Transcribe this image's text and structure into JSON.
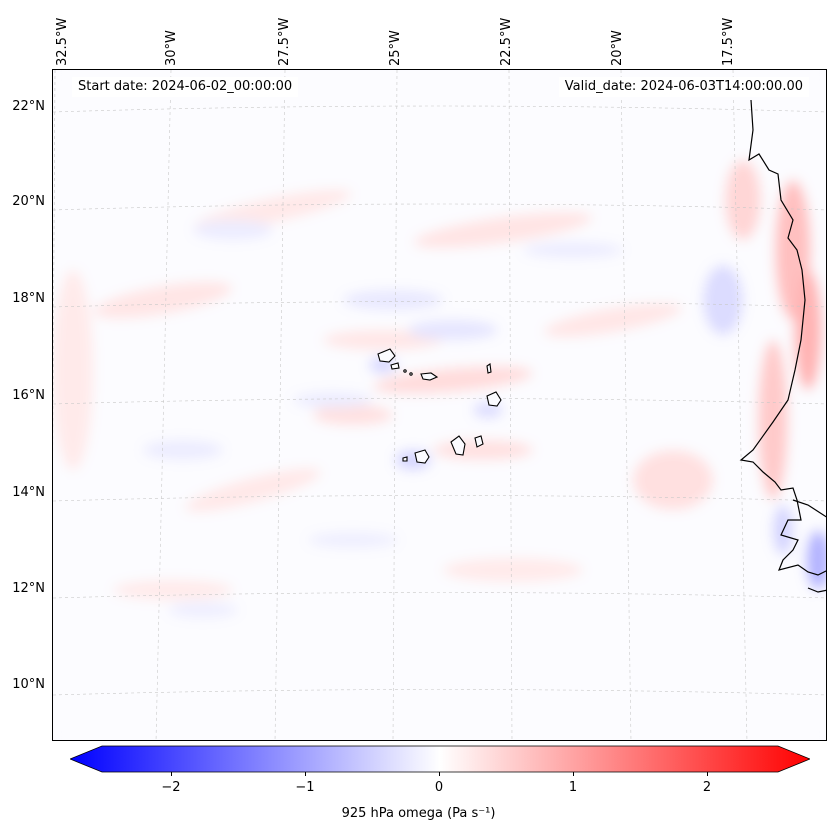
{
  "map": {
    "start_date": "Start date: 2024-06-02_00:00:00",
    "valid_date": "Valid_date: 2024-06-03T14:00:00.00",
    "lon_labels": [
      "32.5°W",
      "30°W",
      "27.5°W",
      "25°W",
      "22.5°W",
      "20°W",
      "17.5°W"
    ],
    "lat_labels": [
      "22°N",
      "20°N",
      "18°N",
      "16°N",
      "14°N",
      "12°N",
      "10°N"
    ],
    "colors": {
      "negative": "#0000ff",
      "neutral": "#ffffff",
      "positive": "#ff0000",
      "coast": "#000000"
    }
  },
  "colorbar": {
    "title": "925 hPa omega (Pa s⁻¹)",
    "tick_labels": [
      "−2",
      "−1",
      "0",
      "1",
      "2"
    ],
    "min": -2.6,
    "max": 2.6
  }
}
